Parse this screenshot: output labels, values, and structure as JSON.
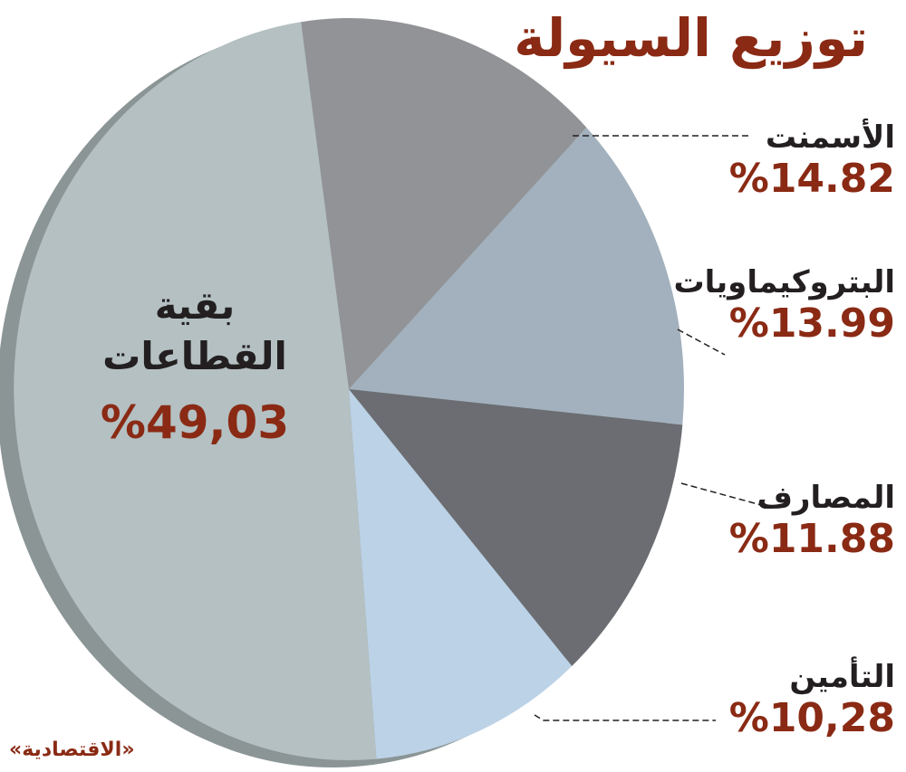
{
  "title": "توزيع السيولة",
  "source": "«الاقتصادية»",
  "colors": {
    "accent": "#8a2a14",
    "text": "#231f20",
    "shadow": "#8b9596",
    "cement": "#929396",
    "petrochem": "#a2b1bd",
    "banks": "#6b6d72",
    "insurance": "#bcd2e6",
    "rest": "#b4c0c2"
  },
  "labels": {
    "cement": {
      "name": "الأسمنت",
      "pct": "%14.82"
    },
    "petrochem": {
      "name": "البتروكيماويات",
      "pct": "%13.99"
    },
    "banks": {
      "name": "المصارف",
      "pct": "%11.88"
    },
    "insurance": {
      "name": "التأمين",
      "pct": "%10,28"
    },
    "rest": {
      "name_line1": "بقية",
      "name_line2": "القطاعات",
      "pct": "%49,03"
    }
  },
  "chart_data": {
    "type": "pie",
    "title": "توزيع السيولة",
    "slices": [
      {
        "key": "cement",
        "label": "الأسمنت",
        "value": 14.82
      },
      {
        "key": "petrochem",
        "label": "البتروكيماويات",
        "value": 13.99
      },
      {
        "key": "banks",
        "label": "المصارف",
        "value": 11.88
      },
      {
        "key": "insurance",
        "label": "التأمين",
        "value": 10.28
      },
      {
        "key": "rest",
        "label": "بقية القطاعات",
        "value": 49.03
      }
    ]
  }
}
